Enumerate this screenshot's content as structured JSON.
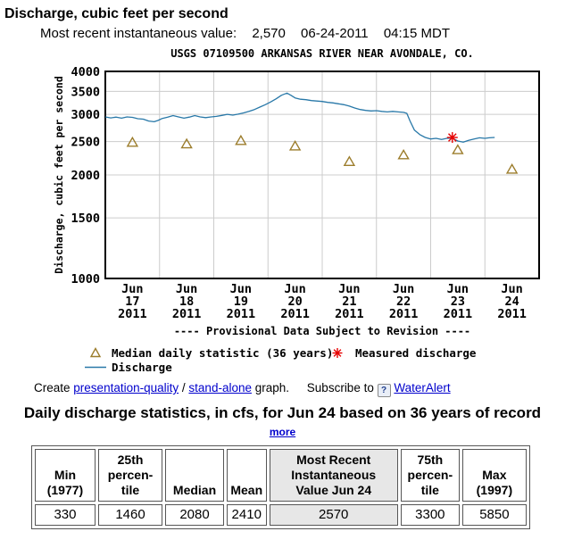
{
  "page": {
    "title": "Discharge, cubic feet per second",
    "most_recent_label": "Most recent instantaneous value:",
    "most_recent_value": "2,570",
    "most_recent_date": "06-24-2011",
    "most_recent_time": "04:15 MDT"
  },
  "chart_data": {
    "type": "line",
    "title": "USGS 07109500 ARKANSAS RIVER NEAR AVONDALE, CO.",
    "ylabel": "Discharge, cubic feet per second",
    "y_scale": "log",
    "ylim": [
      1000,
      4000
    ],
    "yticks": [
      4000,
      3500,
      3000,
      2500,
      2000,
      1500,
      1000
    ],
    "grid": true,
    "x_axis": {
      "unit": "days since 2011-06-17 00:00 MDT",
      "range": [
        0,
        8
      ],
      "tick_labels": [
        {
          "mon": "Jun",
          "day": "17",
          "year": "2011"
        },
        {
          "mon": "Jun",
          "day": "18",
          "year": "2011"
        },
        {
          "mon": "Jun",
          "day": "19",
          "year": "2011"
        },
        {
          "mon": "Jun",
          "day": "20",
          "year": "2011"
        },
        {
          "mon": "Jun",
          "day": "21",
          "year": "2011"
        },
        {
          "mon": "Jun",
          "day": "22",
          "year": "2011"
        },
        {
          "mon": "Jun",
          "day": "23",
          "year": "2011"
        },
        {
          "mon": "Jun",
          "day": "24",
          "year": "2011"
        }
      ]
    },
    "provisional_note": "---- Provisional Data Subject to Revision ----",
    "series": [
      {
        "name": "Discharge",
        "marker": "line",
        "color": "#2878a8",
        "points": [
          [
            0,
            2950
          ],
          [
            0.1,
            2930
          ],
          [
            0.2,
            2945
          ],
          [
            0.3,
            2925
          ],
          [
            0.4,
            2950
          ],
          [
            0.5,
            2940
          ],
          [
            0.6,
            2915
          ],
          [
            0.7,
            2905
          ],
          [
            0.8,
            2870
          ],
          [
            0.9,
            2855
          ],
          [
            0.97,
            2880
          ],
          [
            1.05,
            2920
          ],
          [
            1.15,
            2945
          ],
          [
            1.25,
            2975
          ],
          [
            1.35,
            2950
          ],
          [
            1.45,
            2925
          ],
          [
            1.55,
            2945
          ],
          [
            1.65,
            2975
          ],
          [
            1.75,
            2950
          ],
          [
            1.85,
            2935
          ],
          [
            1.95,
            2950
          ],
          [
            2.05,
            2960
          ],
          [
            2.15,
            2980
          ],
          [
            2.25,
            3000
          ],
          [
            2.35,
            2985
          ],
          [
            2.45,
            3005
          ],
          [
            2.55,
            3030
          ],
          [
            2.65,
            3060
          ],
          [
            2.75,
            3100
          ],
          [
            2.85,
            3150
          ],
          [
            2.95,
            3200
          ],
          [
            3.05,
            3260
          ],
          [
            3.15,
            3330
          ],
          [
            3.25,
            3410
          ],
          [
            3.35,
            3460
          ],
          [
            3.42,
            3410
          ],
          [
            3.5,
            3350
          ],
          [
            3.6,
            3320
          ],
          [
            3.7,
            3310
          ],
          [
            3.8,
            3290
          ],
          [
            3.9,
            3280
          ],
          [
            4,
            3270
          ],
          [
            4.1,
            3250
          ],
          [
            4.2,
            3240
          ],
          [
            4.3,
            3220
          ],
          [
            4.4,
            3200
          ],
          [
            4.5,
            3170
          ],
          [
            4.6,
            3130
          ],
          [
            4.7,
            3100
          ],
          [
            4.8,
            3080
          ],
          [
            4.9,
            3070
          ],
          [
            5,
            3075
          ],
          [
            5.1,
            3060
          ],
          [
            5.2,
            3050
          ],
          [
            5.3,
            3060
          ],
          [
            5.4,
            3050
          ],
          [
            5.5,
            3040
          ],
          [
            5.56,
            3020
          ],
          [
            5.62,
            2870
          ],
          [
            5.7,
            2700
          ],
          [
            5.8,
            2620
          ],
          [
            5.9,
            2570
          ],
          [
            6,
            2545
          ],
          [
            6.1,
            2555
          ],
          [
            6.2,
            2535
          ],
          [
            6.3,
            2555
          ],
          [
            6.4,
            2560
          ],
          [
            6.5,
            2510
          ],
          [
            6.6,
            2490
          ],
          [
            6.7,
            2520
          ],
          [
            6.8,
            2545
          ],
          [
            6.9,
            2565
          ],
          [
            7,
            2555
          ],
          [
            7.08,
            2565
          ],
          [
            7.18,
            2570
          ]
        ]
      },
      {
        "name": "Median daily statistic (36 years)",
        "marker": "triangle",
        "color": "#9c7d2c",
        "points": [
          [
            0.5,
            2490
          ],
          [
            1.5,
            2465
          ],
          [
            2.5,
            2520
          ],
          [
            3.5,
            2430
          ],
          [
            4.5,
            2190
          ],
          [
            5.5,
            2290
          ],
          [
            6.5,
            2370
          ],
          [
            7.5,
            2080
          ]
        ]
      },
      {
        "name": "Measured discharge",
        "marker": "asterisk",
        "color": "#e60000",
        "points": [
          [
            6.4,
            2570
          ]
        ]
      }
    ]
  },
  "links": {
    "create": "Create",
    "presentation_quality": "presentation-quality",
    "separator": "/",
    "stand_alone": "stand-alone",
    "graph_suffix": "graph.",
    "subscribe": "Subscribe to",
    "help_icon": "?",
    "wateralert": "WaterAlert"
  },
  "stats": {
    "heading": "Daily discharge statistics, in cfs, for Jun 24 based on 36 years of record",
    "more_label": "more",
    "columns": [
      "Min\n(1977)",
      "25th\npercen-\ntile",
      "Median",
      "Mean",
      "Most Recent\nInstantaneous\nValue Jun 24",
      "75th\npercen-\ntile",
      "Max\n(1997)"
    ],
    "values": [
      "330",
      "1460",
      "2080",
      "2410",
      "2570",
      "3300",
      "5850"
    ],
    "highlight_index": 4
  },
  "colors": {
    "link_blue": "#0000cc",
    "discharge_line": "#2878a8",
    "median_marker": "#9c7d2c",
    "measured_marker": "#e60000",
    "provisional_red": "#cc0000",
    "grid": "#cccccc",
    "plot_border": "#000000",
    "table_border": "#565656",
    "table_highlight": "#e7e7e7"
  }
}
